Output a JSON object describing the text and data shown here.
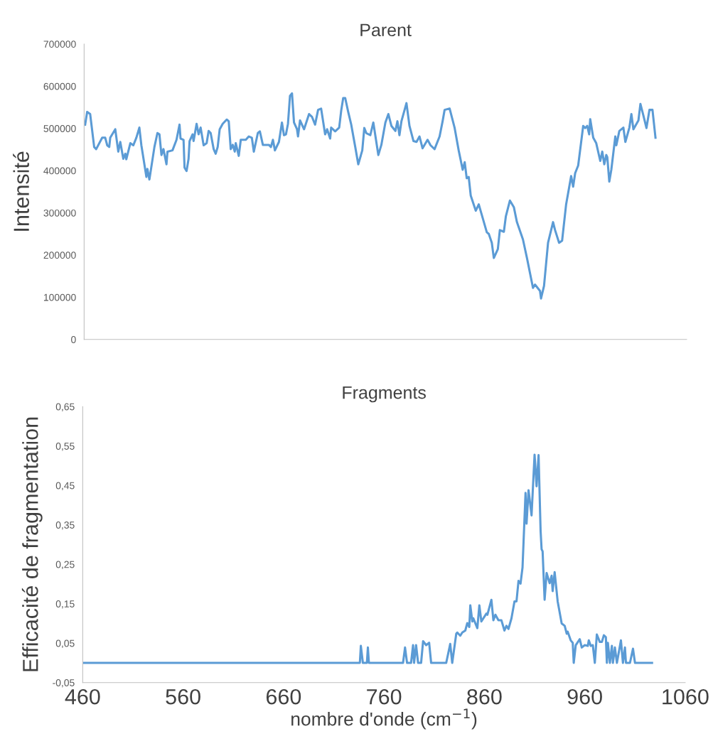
{
  "chart_data": [
    {
      "type": "line",
      "title": "Parent",
      "ylabel": "Intensité",
      "xlim": [
        460,
        1060
      ],
      "ylim": [
        0,
        700000
      ],
      "yticks": [
        0,
        100000,
        200000,
        300000,
        400000,
        500000,
        600000,
        700000
      ],
      "tick_labels": "y",
      "marker": "none",
      "line_style": "solid",
      "series": [
        {
          "color": "#5b9bd5",
          "x": [
            461,
            463,
            466,
            470,
            472,
            478,
            481,
            483,
            485,
            486,
            491,
            494,
            496,
            499,
            501,
            502,
            506,
            509,
            512,
            515,
            517,
            522,
            523,
            525,
            530,
            533,
            535,
            537,
            539,
            542,
            543,
            548,
            552,
            555,
            556,
            559,
            560,
            562,
            564,
            565,
            568,
            569,
            572,
            574,
            576,
            579,
            582,
            584,
            586,
            589,
            591,
            593,
            595,
            598,
            602,
            604,
            606,
            608,
            610,
            611,
            614,
            616,
            621,
            624,
            627,
            629,
            633,
            635,
            638,
            644,
            646,
            648,
            650,
            654,
            657,
            659,
            661,
            663,
            665,
            667,
            669,
            672,
            673,
            675,
            679,
            684,
            687,
            690,
            693,
            696,
            700,
            702,
            705,
            706,
            710,
            714,
            716,
            718,
            720,
            723,
            726,
            730,
            733,
            737,
            739,
            741,
            745,
            748,
            753,
            756,
            760,
            763,
            766,
            770,
            772,
            774,
            776,
            781,
            784,
            788,
            791,
            794,
            797,
            802,
            805,
            809,
            814,
            817,
            819,
            824,
            829,
            833,
            837,
            839,
            841,
            843,
            845,
            850,
            853,
            861,
            863,
            866,
            868,
            872,
            874,
            878,
            880,
            884,
            888,
            891,
            897,
            901,
            907,
            909,
            914,
            915,
            918,
            922,
            927,
            929,
            933,
            936,
            940,
            945,
            947,
            949,
            952,
            957,
            959,
            961,
            963,
            964,
            967,
            970,
            974,
            976,
            978,
            980,
            981,
            983,
            985,
            989,
            990,
            993,
            997,
            999,
            1003,
            1005,
            1007,
            1012,
            1014,
            1017,
            1020,
            1023,
            1026,
            1029
          ],
          "values": [
            509000,
            539000,
            534000,
            456000,
            451000,
            478000,
            478000,
            460000,
            456000,
            478000,
            498000,
            445000,
            468000,
            428000,
            440000,
            427000,
            465000,
            460000,
            478000,
            502000,
            460000,
            385000,
            404000,
            379000,
            456000,
            489000,
            486000,
            437000,
            451000,
            415000,
            445000,
            448000,
            473000,
            509000,
            476000,
            473000,
            407000,
            399000,
            428000,
            470000,
            486000,
            470000,
            511000,
            486000,
            502000,
            460000,
            465000,
            494000,
            489000,
            451000,
            440000,
            456000,
            498000,
            511000,
            521000,
            517000,
            451000,
            461000,
            445000,
            465000,
            435000,
            473000,
            473000,
            481000,
            478000,
            445000,
            489000,
            493000,
            461000,
            461000,
            456000,
            473000,
            448000,
            468000,
            514000,
            484000,
            486000,
            511000,
            577000,
            583000,
            514000,
            498000,
            481000,
            519000,
            498000,
            534000,
            527000,
            509000,
            544000,
            547000,
            486000,
            498000,
            476000,
            502000,
            493000,
            502000,
            542000,
            572000,
            572000,
            539000,
            509000,
            456000,
            415000,
            448000,
            501000,
            489000,
            484000,
            514000,
            437000,
            461000,
            514000,
            534000,
            506000,
            494000,
            517000,
            484000,
            517000,
            560000,
            506000,
            470000,
            468000,
            481000,
            453000,
            473000,
            460000,
            451000,
            481000,
            517000,
            544000,
            547000,
            501000,
            448000,
            402000,
            420000,
            382000,
            385000,
            341000,
            305000,
            320000,
            254000,
            250000,
            229000,
            193000,
            214000,
            259000,
            255000,
            292000,
            329000,
            313000,
            278000,
            237000,
            193000,
            122000,
            130000,
            115000,
            97000,
            127000,
            229000,
            278000,
            259000,
            229000,
            234000,
            320000,
            387000,
            362000,
            394000,
            412000,
            506000,
            501000,
            506000,
            486000,
            522000,
            478000,
            465000,
            423000,
            445000,
            415000,
            437000,
            432000,
            374000,
            402000,
            481000,
            460000,
            494000,
            502000,
            468000,
            502000,
            534000,
            498000,
            519000,
            558000,
            530000,
            501000,
            544000,
            544000,
            478000
          ]
        }
      ]
    },
    {
      "type": "line",
      "title": "Fragments",
      "xlabel": "nombre d'onde (cm$^{−1}$)",
      "ylabel": "Efficacité de fragmentation",
      "xlim": [
        460,
        1060
      ],
      "xticks": [
        460,
        560,
        660,
        760,
        860,
        960,
        1060
      ],
      "ylim": [
        -0.05,
        0.65
      ],
      "yticks": [
        {
          "value": -0.05,
          "label": "-0,05"
        },
        {
          "value": 0.05,
          "label": "0,05"
        },
        {
          "value": 0.15,
          "label": "0,15"
        },
        {
          "value": 0.25,
          "label": "0,25"
        },
        {
          "value": 0.35,
          "label": "0,35"
        },
        {
          "value": 0.45,
          "label": "0,45"
        },
        {
          "value": 0.55,
          "label": "0,55"
        },
        {
          "value": 0.65,
          "label": "0,65"
        }
      ],
      "marker": "none",
      "line_style": "solid",
      "series": [
        {
          "color": "#5b9bd5",
          "x": [
            460,
            736,
            737,
            739,
            743,
            744,
            745,
            779,
            781,
            783,
            787,
            789,
            790,
            792,
            794,
            797,
            799,
            802,
            805,
            807,
            822,
            826,
            828,
            832,
            833,
            836,
            838,
            841,
            843,
            845,
            846,
            848,
            849,
            853,
            855,
            857,
            862,
            863,
            867,
            869,
            871,
            874,
            877,
            880,
            882,
            884,
            887,
            890,
            892,
            894,
            896,
            898,
            901,
            902,
            904,
            907,
            910,
            912,
            914,
            916,
            917,
            918,
            920,
            922,
            925,
            927,
            928,
            930,
            933,
            937,
            940,
            942,
            943,
            946,
            948,
            949,
            951,
            955,
            957,
            960,
            963,
            964,
            966,
            968,
            970,
            972,
            975,
            977,
            979,
            981,
            982,
            983,
            985,
            987,
            988,
            990,
            992,
            996,
            998,
            1000,
            1001,
            1005,
            1008,
            1010,
            1027
          ],
          "values": [
            0,
            0,
            0.043,
            0,
            0,
            0.039,
            0,
            0,
            0.039,
            0,
            0,
            0.045,
            0,
            0.045,
            0,
            0,
            0.055,
            0.045,
            0.051,
            0,
            0,
            0.048,
            0,
            0.074,
            0.077,
            0.069,
            0.077,
            0.082,
            0.101,
            0.091,
            0.146,
            0.105,
            0.113,
            0.088,
            0.146,
            0.105,
            0.125,
            0.122,
            0.16,
            0.108,
            0.122,
            0.108,
            0.108,
            0.082,
            0.094,
            0.086,
            0.113,
            0.156,
            0.156,
            0.208,
            0.201,
            0.242,
            0.431,
            0.353,
            0.438,
            0.374,
            0.528,
            0.448,
            0.527,
            0.335,
            0.288,
            0.283,
            0.16,
            0.228,
            0.202,
            0.221,
            0.182,
            0.23,
            0.156,
            0.1,
            0.094,
            0.074,
            0.079,
            0.057,
            0.051,
            0,
            0.045,
            0.06,
            0.039,
            0.045,
            0.043,
            0.057,
            0.043,
            0.045,
            0,
            0.072,
            0.053,
            0.053,
            0.07,
            0.065,
            0,
            0.051,
            0,
            0.043,
            0,
            0.039,
            0,
            0.057,
            0,
            0.039,
            0,
            0,
            0.036,
            0,
            0
          ]
        }
      ]
    }
  ]
}
